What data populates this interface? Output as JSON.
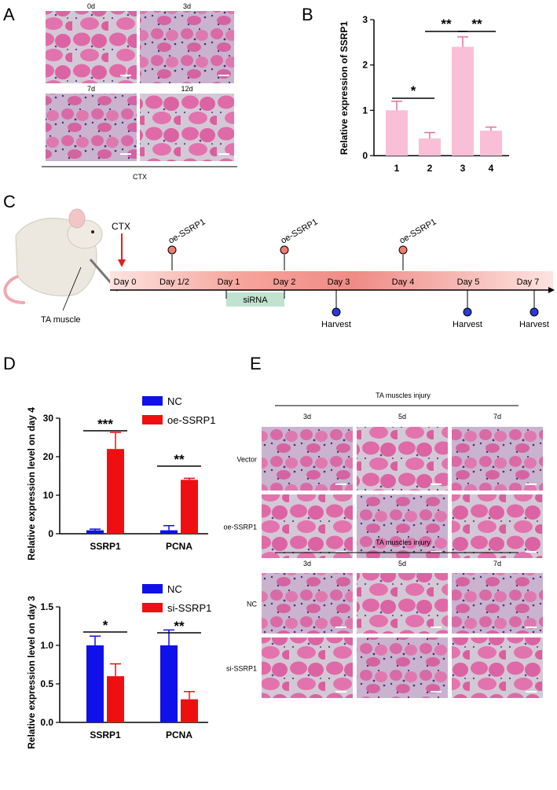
{
  "panels": {
    "a": "A",
    "b": "B",
    "c": "C",
    "d": "D",
    "e": "E"
  },
  "panel_a": {
    "times": [
      "0d",
      "3d",
      "7d",
      "12d"
    ],
    "treatment": "CTX"
  },
  "panel_c": {
    "ctx": "CTX",
    "muscle": "TA muscle",
    "days": [
      "Day 0",
      "Day 1/2",
      "Day 1",
      "Day 2",
      "Day 3",
      "Day 4",
      "Day 5",
      "Day 7"
    ],
    "oe_labels": [
      "oe-SSRP1",
      "oe-SSRP1",
      "oe-SSRP1"
    ],
    "sirna": "siRNA",
    "harvest": [
      "Harvest",
      "Harvest",
      "Harvest"
    ]
  },
  "panel_e": {
    "header": "TA muscles injury",
    "times": [
      "3d",
      "5d",
      "7d"
    ],
    "rows_top": [
      "Vector",
      "oe-SSRP1"
    ],
    "rows_bottom": [
      "NC",
      "si-SSRP1"
    ]
  },
  "colors": {
    "pink_bar": "#f9bfd6",
    "pink_err": "#e56fa0",
    "blue": "#1010e8",
    "red": "#ee1010",
    "he_pink": "#e06aa8",
    "he_bg": "#d3c9d6"
  },
  "chart_data": [
    {
      "type": "bar",
      "panel": "B",
      "categories": [
        "1",
        "2",
        "3",
        "4"
      ],
      "values": [
        1.0,
        0.38,
        2.4,
        0.55
      ],
      "errors": [
        0.2,
        0.13,
        0.22,
        0.08
      ],
      "ylabel": "Relative expression of SSRP1",
      "ylim": [
        0,
        3
      ],
      "yticks": [
        "0",
        "1",
        "2",
        "3"
      ],
      "significance": [
        {
          "from": 0,
          "to": 1,
          "label": "*"
        },
        {
          "from": 1,
          "to": 2,
          "label": "**"
        },
        {
          "from": 2,
          "to": 3,
          "label": "**"
        }
      ]
    },
    {
      "type": "bar",
      "panel": "D-top",
      "categories": [
        "SSRP1",
        "PCNA"
      ],
      "series": [
        {
          "name": "NC",
          "values": [
            0.9,
            0.9
          ],
          "errors": [
            0.3,
            1.2
          ]
        },
        {
          "name": "oe-SSRP1",
          "values": [
            22,
            14
          ],
          "errors": [
            4.3,
            0.4
          ]
        }
      ],
      "ylabel": "Relative expression level on day 4",
      "ylim": [
        0,
        30
      ],
      "yticks": [
        "0",
        "10",
        "20",
        "30"
      ],
      "significance": [
        "***",
        "**"
      ],
      "legend": "top-right"
    },
    {
      "type": "bar",
      "panel": "D-bottom",
      "categories": [
        "SSRP1",
        "PCNA"
      ],
      "series": [
        {
          "name": "NC",
          "values": [
            1.0,
            1.0
          ],
          "errors": [
            0.12,
            0.2
          ]
        },
        {
          "name": "si-SSRP1",
          "values": [
            0.6,
            0.3
          ],
          "errors": [
            0.16,
            0.1
          ]
        }
      ],
      "ylabel": "Relative expression level on day 3",
      "ylim": [
        0,
        1.5
      ],
      "yticks": [
        "0.0",
        "0.5",
        "1.0",
        "1.5"
      ],
      "significance": [
        "*",
        "**"
      ],
      "legend": "top-right"
    }
  ]
}
